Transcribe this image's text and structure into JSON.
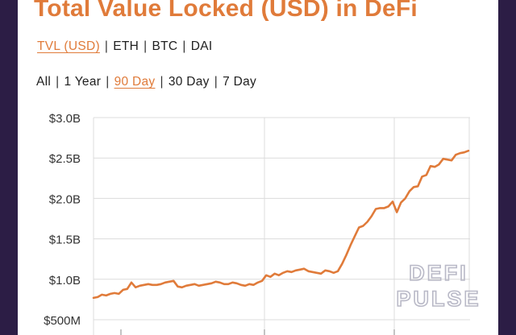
{
  "header": {
    "title": "Total Value Locked (USD) in DeFi"
  },
  "metric_tabs": [
    {
      "label": "TVL (USD)",
      "active": true
    },
    {
      "label": "ETH",
      "active": false
    },
    {
      "label": "BTC",
      "active": false
    },
    {
      "label": "DAI",
      "active": false
    }
  ],
  "range_tabs": [
    {
      "label": "All",
      "active": false
    },
    {
      "label": "1 Year",
      "active": false
    },
    {
      "label": "90 Day",
      "active": true
    },
    {
      "label": "30 Day",
      "active": false
    },
    {
      "label": "7 Day",
      "active": false
    }
  ],
  "separator": "|",
  "watermark": {
    "line1": "DEFI",
    "line2": "PULSE"
  },
  "colors": {
    "accent": "#e07b3a",
    "background_frame": "#2c1d45",
    "grid": "#dcdcdc",
    "watermark": "#b9b9c7"
  },
  "chart_data": {
    "type": "line",
    "title": "Total Value Locked (USD) in DeFi",
    "ylabel": "",
    "xlabel": "",
    "y_tick_labels": [
      "$500M",
      "$1.0B",
      "$1.5B",
      "$2.0B",
      "$2.5B",
      "$3.0B"
    ],
    "y_ticks": [
      500,
      1000,
      1500,
      2000,
      2500,
      3000
    ],
    "ylim": [
      500,
      3000
    ],
    "grid": true,
    "series": [
      {
        "values": [
          770,
          780,
          810,
          800,
          820,
          830,
          820,
          870,
          880,
          960,
          900,
          920,
          930,
          940,
          930,
          930,
          940,
          960,
          970,
          980,
          910,
          900,
          920,
          930,
          940,
          920,
          930,
          940,
          950,
          970,
          960,
          940,
          940,
          960,
          950,
          930,
          920,
          940,
          930,
          960,
          980,
          1050,
          1030,
          1070,
          1050,
          1080,
          1100,
          1090,
          1110,
          1120,
          1130,
          1100,
          1090,
          1080,
          1070,
          1110,
          1100,
          1080,
          1100,
          1190,
          1300,
          1420,
          1530,
          1640,
          1660,
          1710,
          1780,
          1870,
          1880,
          1880,
          1900,
          1960,
          1830,
          1950,
          2000,
          2090,
          2140,
          2150,
          2270,
          2290,
          2400,
          2390,
          2420,
          2490,
          2480,
          2470,
          2540,
          2560,
          2570,
          2590
        ]
      }
    ]
  }
}
